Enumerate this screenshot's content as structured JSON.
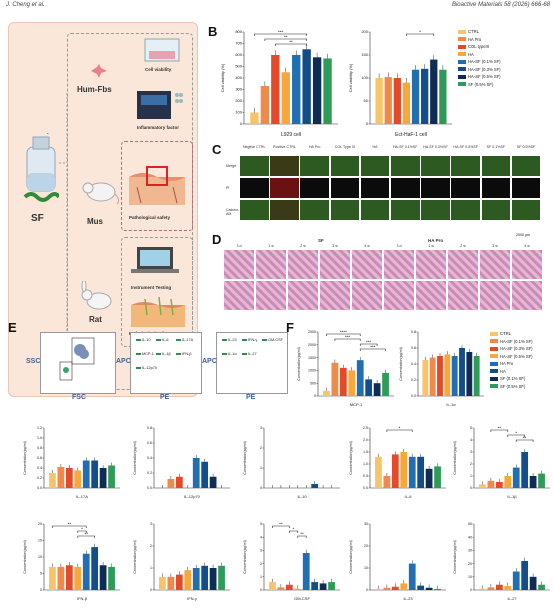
{
  "header": {
    "left": "J. Cheng et al.",
    "right": "Bioactive Materials 58 (2026) 666-68"
  },
  "panels": {
    "A": "A",
    "B": "B",
    "C": "C",
    "D": "D",
    "E": "E",
    "F": "F"
  },
  "panelA": {
    "sf": "SF",
    "hum": "Hum-Fbs",
    "mus": "Mus",
    "rat": "Rat",
    "cell_viability": "Cell viability",
    "inflammatory": "Inflammatory factor",
    "patho1": "Pathological safety",
    "instrument": "Instrument Testing",
    "patho2": "Pathological safety"
  },
  "legendB": [
    "CTRL",
    "HA Pro",
    "COL typeIII",
    "HA",
    "HA-SF (0.1% SF)",
    "HA-SF (0.3% SF)",
    "HA-SF (0.5% SF)",
    "SF (0.5% SF)"
  ],
  "legendF": [
    "CTRL",
    "HA-SF (0.1% SF)",
    "HA-SF (0.3% SF)",
    "HA-SF (0.5% SF)",
    "HA Pro",
    "HA",
    "SF (0.1% SF)",
    "SF (0.5% SF)"
  ],
  "colors": [
    "#f7c46a",
    "#f08a4b",
    "#e24a2a",
    "#f0a020",
    "#2b79b8",
    "#134e8a",
    "#0f2c54",
    "#2f9b58"
  ],
  "panelC": {
    "cols": [
      "Negtive CTRL",
      "Positive CTRL",
      "HA Pro",
      "COL Type III",
      "HA",
      "HA-SF 0.1%SF",
      "HA-SF 0.3%SF",
      "HA-SF 0.5%SF",
      "SF 0.1%SF",
      "SF 0.5%SF"
    ],
    "rows": [
      "Merge",
      "PI",
      "Calcein-AM"
    ],
    "scale": "2000 μm"
  },
  "panelD": {
    "groupSF": "SF",
    "groupHA": "HA Pro",
    "times": [
      "3 d",
      "1 w",
      "2 w",
      "3 w",
      "4 w"
    ],
    "scale": "200 μm"
  },
  "panelE": {
    "ssc": "SSC",
    "fsc": "FSC",
    "apc": "APC",
    "pe": "PE",
    "labels1": [
      "IL-10",
      "IL-6",
      "IL-17A",
      "MCP-1",
      "IL-1β",
      "IFN-β",
      "IL-12p70"
    ],
    "labels2": [
      "IL-23",
      "IFN-γ",
      "GM-CSF",
      "IL-1α",
      "IL-27"
    ]
  },
  "chart_data": [
    {
      "type": "bar",
      "ylabel": "Cell viability (%)",
      "xlabel": "L929 cell",
      "ylim": [
        0,
        800
      ],
      "ticks": [
        "0",
        "100",
        "200",
        "300",
        "400",
        "500",
        "600",
        "700",
        "800"
      ],
      "categories": [
        "CTRL",
        "HA Pro",
        "COL typeIII",
        "HA",
        "HA-SF (0.1% SF)",
        "HA-SF (0.3% SF)",
        "HA-SF (0.5% SF)",
        "SF (0.5% SF)"
      ],
      "values": [
        100,
        330,
        600,
        450,
        600,
        650,
        580,
        570
      ],
      "sig": [
        {
          "from": 0,
          "to": 5,
          "label": "***"
        },
        {
          "from": 1,
          "to": 5,
          "label": "**"
        },
        {
          "from": 2,
          "to": 5,
          "label": "**"
        }
      ]
    },
    {
      "type": "bar",
      "ylabel": "Cell viability (%)",
      "xlabel": "Ect-HaF-1 cell",
      "ylim": [
        0,
        200
      ],
      "ticks": [
        "0",
        "50",
        "100",
        "150",
        "200"
      ],
      "categories": [
        "CTRL",
        "HA Pro",
        "COL typeIII",
        "HA",
        "HA-SF (0.1% SF)",
        "HA-SF (0.3% SF)",
        "HA-SF (0.5% SF)",
        "SF (0.5% SF)"
      ],
      "values": [
        100,
        102,
        100,
        90,
        118,
        120,
        140,
        118
      ],
      "sig": [
        {
          "from": 3,
          "to": 6,
          "label": "*"
        }
      ]
    },
    {
      "type": "bar",
      "ylabel": "Concentration(pg/ml)",
      "xlabel": "MCP-1",
      "ylim": [
        0,
        2500
      ],
      "ticks": [
        "0",
        "500",
        "1000",
        "1500",
        "2000",
        "2500"
      ],
      "colors": "F",
      "values": [
        200,
        1300,
        1100,
        1000,
        1400,
        650,
        500,
        900
      ],
      "sig": [
        {
          "from": 0,
          "to": 4,
          "label": "****"
        },
        {
          "from": 1,
          "to": 4,
          "label": "***"
        },
        {
          "from": 4,
          "to": 6,
          "label": "***"
        },
        {
          "from": 4,
          "to": 7,
          "label": "***"
        }
      ]
    },
    {
      "type": "bar",
      "ylabel": "Concentration(pg/ml)",
      "xlabel": "IL-1α",
      "ylim": [
        0,
        0.8
      ],
      "ticks": [
        "0.0",
        "0.2",
        "0.4",
        "0.6",
        "0.8"
      ],
      "colors": "F",
      "values": [
        0.45,
        0.48,
        0.5,
        0.52,
        0.5,
        0.6,
        0.55,
        0.5
      ],
      "sig": []
    },
    {
      "type": "bar",
      "ylabel": "Concentration(pg/ml)",
      "xlabel": "IL-17A",
      "ylim": [
        0,
        1.2
      ],
      "ticks": [
        "0.0",
        "0.2",
        "0.4",
        "0.6",
        "0.8",
        "1.0",
        "1.2"
      ],
      "colors": "F",
      "values": [
        0.3,
        0.42,
        0.4,
        0.35,
        0.55,
        0.55,
        0.4,
        0.45
      ],
      "sig": []
    },
    {
      "type": "bar",
      "ylabel": "Concentration(pg/ml)",
      "xlabel": "IL-12p70",
      "ylim": [
        0,
        0.8
      ],
      "ticks": [
        "0.0",
        "0.2",
        "0.4",
        "0.6",
        "0.8"
      ],
      "colors": "F",
      "values": [
        0.0,
        0.12,
        0.15,
        0.0,
        0.4,
        0.35,
        0.15,
        0.0
      ],
      "sig": []
    },
    {
      "type": "bar",
      "ylabel": "Concentration(pg/ml)",
      "xlabel": "IL-10",
      "ylim": [
        0,
        3
      ],
      "ticks": [
        "0",
        "1",
        "2",
        "3"
      ],
      "colors": "F",
      "values": [
        0,
        0,
        0,
        0,
        0,
        0.2,
        0,
        0
      ],
      "sig": []
    },
    {
      "type": "bar",
      "ylabel": "Concentration(pg/ml)",
      "xlabel": "IL-6",
      "ylim": [
        0,
        2.5
      ],
      "ticks": [
        "0.0",
        "0.5",
        "1.0",
        "1.5",
        "2.0",
        "2.5"
      ],
      "colors": "F",
      "values": [
        1.3,
        0.5,
        1.4,
        1.5,
        1.3,
        1.3,
        0.8,
        0.9
      ],
      "sig": [
        {
          "from": 1,
          "to": 4,
          "label": "*"
        }
      ]
    },
    {
      "type": "bar",
      "ylabel": "Concentration(pg/ml)",
      "xlabel": "IL-1β",
      "ylim": [
        0,
        5
      ],
      "ticks": [
        "0",
        "1",
        "2",
        "3",
        "4",
        "5"
      ],
      "colors": "F",
      "values": [
        0.3,
        0.6,
        0.5,
        1.0,
        1.7,
        3.0,
        1.0,
        1.2
      ],
      "sig": [
        {
          "from": 1,
          "to": 3,
          "label": "**"
        },
        {
          "from": 3,
          "to": 5,
          "label": "*"
        },
        {
          "from": 4,
          "to": 6,
          "label": "**"
        }
      ]
    },
    {
      "type": "bar",
      "ylabel": "Concentration(pg/ml)",
      "xlabel": "IFN-β",
      "ylim": [
        0,
        20
      ],
      "ticks": [
        "0",
        "5",
        "10",
        "15",
        "20"
      ],
      "colors": "F",
      "values": [
        7,
        7,
        7.5,
        7,
        11,
        13,
        7.5,
        7
      ],
      "sig": [
        {
          "from": 0,
          "to": 4,
          "label": "**"
        },
        {
          "from": 3,
          "to": 4,
          "label": "*"
        },
        {
          "from": 3,
          "to": 5,
          "label": "**"
        }
      ]
    },
    {
      "type": "bar",
      "ylabel": "Concentration(pg/ml)",
      "xlabel": "IFN-γ",
      "ylim": [
        0,
        3
      ],
      "ticks": [
        "0",
        "1",
        "2",
        "3"
      ],
      "colors": "F",
      "values": [
        0.6,
        0.6,
        0.7,
        0.9,
        1.0,
        1.1,
        1.0,
        1.1
      ],
      "sig": []
    },
    {
      "type": "bar",
      "ylabel": "Concentration(pg/ml)",
      "xlabel": "GM-CSF",
      "ylim": [
        0,
        5
      ],
      "ticks": [
        "0",
        "1",
        "2",
        "3",
        "4",
        "5"
      ],
      "colors": "F",
      "values": [
        0.6,
        0.2,
        0.4,
        0.1,
        2.8,
        0.6,
        0.5,
        0.6
      ],
      "sig": [
        {
          "from": 0,
          "to": 2,
          "label": "**"
        },
        {
          "from": 2,
          "to": 3,
          "label": "*"
        },
        {
          "from": 3,
          "to": 4,
          "label": "**"
        }
      ]
    },
    {
      "type": "bar",
      "ylabel": "Concentration(pg/ml)",
      "xlabel": "IL-23",
      "ylim": [
        0,
        30
      ],
      "ticks": [
        "0",
        "10",
        "20",
        "30"
      ],
      "colors": "F",
      "values": [
        0.5,
        1,
        1.5,
        3,
        12,
        2,
        1,
        0.5
      ],
      "sig": []
    },
    {
      "type": "bar",
      "ylabel": "Concentration(pg/ml)",
      "xlabel": "IL-27",
      "ylim": [
        0,
        50
      ],
      "ticks": [
        "0",
        "10",
        "20",
        "30",
        "40",
        "50"
      ],
      "colors": "F",
      "values": [
        1,
        2,
        4,
        3,
        14,
        22,
        10,
        4
      ],
      "sig": []
    }
  ]
}
